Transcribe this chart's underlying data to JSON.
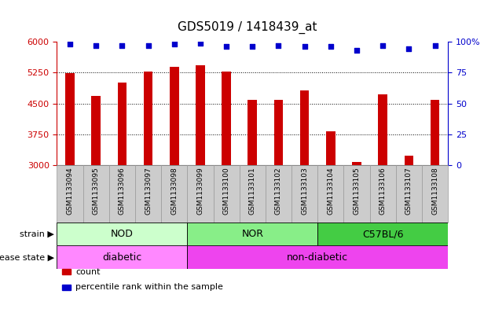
{
  "title": "GDS5019 / 1418439_at",
  "samples": [
    "GSM1133094",
    "GSM1133095",
    "GSM1133096",
    "GSM1133097",
    "GSM1133098",
    "GSM1133099",
    "GSM1133100",
    "GSM1133101",
    "GSM1133102",
    "GSM1133103",
    "GSM1133104",
    "GSM1133105",
    "GSM1133106",
    "GSM1133107",
    "GSM1133108"
  ],
  "counts": [
    5230,
    4680,
    5000,
    5280,
    5390,
    5430,
    5280,
    4580,
    4580,
    4820,
    3830,
    3080,
    4720,
    3230,
    4580
  ],
  "percentile_ranks": [
    98,
    97,
    97,
    97,
    98,
    99,
    96,
    96,
    97,
    96,
    96,
    93,
    97,
    94,
    97
  ],
  "ylim_left": [
    3000,
    6000
  ],
  "ylim_right": [
    0,
    100
  ],
  "yticks_left": [
    3000,
    3750,
    4500,
    5250,
    6000
  ],
  "yticks_right": [
    0,
    25,
    50,
    75,
    100
  ],
  "bar_color": "#cc0000",
  "dot_color": "#0000cc",
  "bar_width": 0.35,
  "strain_groups": [
    {
      "label": "NOD",
      "start": 0,
      "end": 5,
      "color": "#ccffcc"
    },
    {
      "label": "NOR",
      "start": 5,
      "end": 10,
      "color": "#88ee88"
    },
    {
      "label": "C57BL/6",
      "start": 10,
      "end": 15,
      "color": "#44cc44"
    }
  ],
  "disease_groups": [
    {
      "label": "diabetic",
      "start": 0,
      "end": 5,
      "color": "#ff88ff"
    },
    {
      "label": "non-diabetic",
      "start": 5,
      "end": 15,
      "color": "#ee44ee"
    }
  ],
  "strain_label": "strain",
  "disease_label": "disease state",
  "legend_count_label": "count",
  "legend_pct_label": "percentile rank within the sample",
  "bg_color": "#ffffff",
  "tick_color_left": "#cc0000",
  "tick_color_right": "#0000cc",
  "xticklabel_bg": "#cccccc",
  "title_fontsize": 11
}
